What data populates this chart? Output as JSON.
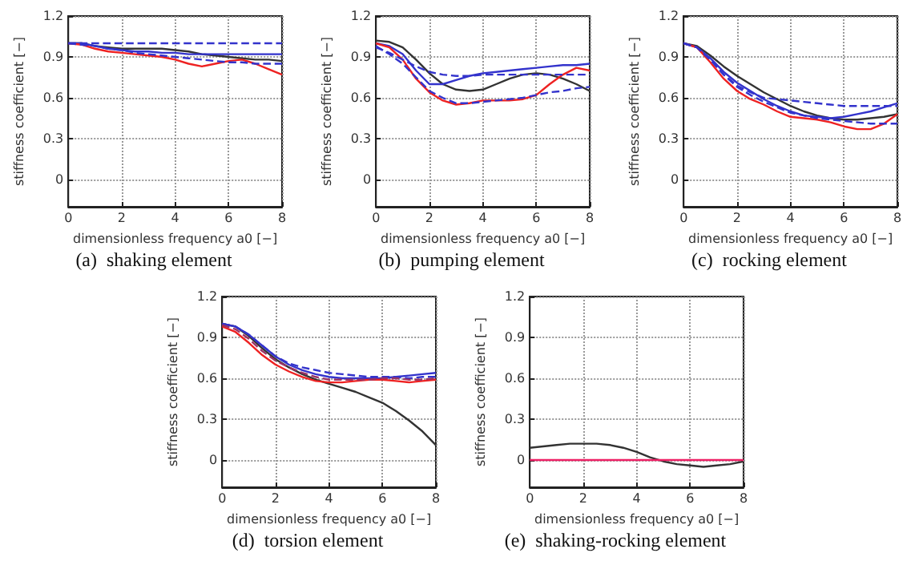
{
  "chart_data": [
    {
      "type": "line",
      "title": "(a)  shaking element",
      "xlabel": "dimensionless frequency a0 [−]",
      "ylabel": "stiffness coefficient [−]",
      "x": [
        0,
        0.5,
        1,
        1.5,
        2,
        2.5,
        3,
        3.5,
        4,
        4.5,
        5,
        5.5,
        6,
        6.5,
        7,
        7.5,
        8
      ],
      "xlim": [
        0,
        8
      ],
      "xticks": [
        0,
        2,
        4,
        6,
        8
      ],
      "ylim": [
        -0.2,
        1.2
      ],
      "yticks": [
        0,
        0.3,
        0.6,
        0.9,
        1.2
      ],
      "grid": true,
      "marker": "none",
      "series": [
        {
          "color": "#333333",
          "line_style": "solid",
          "values": [
            1.0,
            1.0,
            0.98,
            0.97,
            0.96,
            0.96,
            0.96,
            0.96,
            0.95,
            0.94,
            0.92,
            0.91,
            0.9,
            0.89,
            0.88,
            0.88,
            0.87
          ]
        },
        {
          "color": "#3333cc",
          "line_style": "solid",
          "values": [
            1.0,
            1.0,
            0.98,
            0.96,
            0.95,
            0.94,
            0.94,
            0.93,
            0.93,
            0.92,
            0.92,
            0.92,
            0.92,
            0.92,
            0.92,
            0.92,
            0.92
          ]
        },
        {
          "color": "#ee2222",
          "line_style": "solid",
          "values": [
            1.0,
            0.99,
            0.96,
            0.94,
            0.93,
            0.92,
            0.91,
            0.9,
            0.88,
            0.85,
            0.83,
            0.85,
            0.87,
            0.88,
            0.85,
            0.81,
            0.77
          ]
        },
        {
          "color": "#3333cc",
          "line_style": "dashed",
          "values": [
            1.0,
            1.0,
            1.0,
            1.0,
            1.0,
            1.0,
            1.0,
            1.0,
            1.0,
            1.0,
            1.0,
            1.0,
            1.0,
            1.0,
            1.0,
            1.0,
            1.0
          ]
        },
        {
          "color": "#3333cc",
          "line_style": "dashed",
          "values": [
            1.0,
            0.99,
            0.98,
            0.96,
            0.95,
            0.93,
            0.92,
            0.91,
            0.9,
            0.89,
            0.88,
            0.87,
            0.86,
            0.86,
            0.85,
            0.85,
            0.85
          ]
        }
      ]
    },
    {
      "type": "line",
      "title": "(b)  pumping element",
      "xlabel": "dimensionless frequency a0 [−]",
      "ylabel": "stiffness coefficient [−]",
      "x": [
        0,
        0.5,
        1,
        1.5,
        2,
        2.5,
        3,
        3.5,
        4,
        4.5,
        5,
        5.5,
        6,
        6.5,
        7,
        7.5,
        8
      ],
      "xlim": [
        0,
        8
      ],
      "xticks": [
        0,
        2,
        4,
        6,
        8
      ],
      "ylim": [
        -0.2,
        1.2
      ],
      "yticks": [
        0,
        0.3,
        0.6,
        0.9,
        1.2
      ],
      "grid": true,
      "marker": "none",
      "series": [
        {
          "color": "#333333",
          "line_style": "solid",
          "values": [
            1.02,
            1.01,
            0.97,
            0.88,
            0.78,
            0.7,
            0.66,
            0.65,
            0.66,
            0.7,
            0.74,
            0.77,
            0.78,
            0.77,
            0.74,
            0.7,
            0.65
          ]
        },
        {
          "color": "#3333cc",
          "line_style": "solid",
          "values": [
            1.0,
            0.98,
            0.92,
            0.8,
            0.7,
            0.7,
            0.73,
            0.76,
            0.78,
            0.79,
            0.8,
            0.81,
            0.82,
            0.83,
            0.84,
            0.84,
            0.85
          ]
        },
        {
          "color": "#ee2222",
          "line_style": "solid",
          "values": [
            1.0,
            0.97,
            0.88,
            0.74,
            0.64,
            0.58,
            0.55,
            0.56,
            0.58,
            0.58,
            0.58,
            0.59,
            0.62,
            0.7,
            0.77,
            0.82,
            0.8
          ]
        },
        {
          "color": "#3333cc",
          "line_style": "dashed",
          "values": [
            0.97,
            0.93,
            0.88,
            0.83,
            0.79,
            0.77,
            0.76,
            0.76,
            0.77,
            0.77,
            0.77,
            0.77,
            0.77,
            0.77,
            0.77,
            0.77,
            0.77
          ]
        },
        {
          "color": "#3333cc",
          "line_style": "dashed",
          "values": [
            0.98,
            0.92,
            0.85,
            0.75,
            0.65,
            0.6,
            0.56,
            0.56,
            0.57,
            0.58,
            0.59,
            0.6,
            0.62,
            0.64,
            0.65,
            0.67,
            0.68
          ]
        }
      ]
    },
    {
      "type": "line",
      "title": "(c)  rocking element",
      "xlabel": "dimensionless frequency a0 [−]",
      "ylabel": "stiffness coefficient [−]",
      "x": [
        0,
        0.5,
        1,
        1.5,
        2,
        2.5,
        3,
        3.5,
        4,
        4.5,
        5,
        5.5,
        6,
        6.5,
        7,
        7.5,
        8
      ],
      "xlim": [
        0,
        8
      ],
      "xticks": [
        0,
        2,
        4,
        6,
        8
      ],
      "ylim": [
        -0.2,
        1.2
      ],
      "yticks": [
        0,
        0.3,
        0.6,
        0.9,
        1.2
      ],
      "grid": true,
      "marker": "none",
      "series": [
        {
          "color": "#333333",
          "line_style": "solid",
          "values": [
            1.0,
            0.98,
            0.91,
            0.83,
            0.76,
            0.7,
            0.64,
            0.59,
            0.54,
            0.5,
            0.47,
            0.45,
            0.44,
            0.44,
            0.45,
            0.46,
            0.48
          ]
        },
        {
          "color": "#3333cc",
          "line_style": "solid",
          "values": [
            1.0,
            0.97,
            0.89,
            0.79,
            0.71,
            0.65,
            0.59,
            0.54,
            0.5,
            0.47,
            0.46,
            0.45,
            0.46,
            0.48,
            0.5,
            0.53,
            0.56
          ]
        },
        {
          "color": "#ee2222",
          "line_style": "solid",
          "values": [
            1.0,
            0.97,
            0.86,
            0.74,
            0.65,
            0.59,
            0.55,
            0.5,
            0.46,
            0.45,
            0.44,
            0.42,
            0.39,
            0.37,
            0.37,
            0.41,
            0.48
          ]
        },
        {
          "color": "#3333cc",
          "line_style": "dashed",
          "values": [
            1.0,
            0.97,
            0.88,
            0.77,
            0.69,
            0.64,
            0.6,
            0.59,
            0.58,
            0.57,
            0.56,
            0.55,
            0.54,
            0.54,
            0.54,
            0.54,
            0.54
          ]
        },
        {
          "color": "#3333cc",
          "line_style": "dashed",
          "values": [
            1.0,
            0.97,
            0.88,
            0.77,
            0.68,
            0.62,
            0.57,
            0.53,
            0.49,
            0.47,
            0.45,
            0.44,
            0.43,
            0.42,
            0.41,
            0.41,
            0.41
          ]
        }
      ]
    },
    {
      "type": "line",
      "title": "(d)  torsion element",
      "xlabel": "dimensionless frequency a0 [−]",
      "ylabel": "stiffness coefficient [−]",
      "x": [
        0,
        0.5,
        1,
        1.5,
        2,
        2.5,
        3,
        3.5,
        4,
        4.5,
        5,
        5.5,
        6,
        6.5,
        7,
        7.5,
        8
      ],
      "xlim": [
        0,
        8
      ],
      "xticks": [
        0,
        2,
        4,
        6,
        8
      ],
      "ylim": [
        -0.2,
        1.2
      ],
      "yticks": [
        0,
        0.3,
        0.6,
        0.9,
        1.2
      ],
      "grid": true,
      "marker": "none",
      "series": [
        {
          "color": "#333333",
          "line_style": "solid",
          "values": [
            1.0,
            0.98,
            0.91,
            0.82,
            0.74,
            0.68,
            0.63,
            0.59,
            0.56,
            0.53,
            0.5,
            0.46,
            0.42,
            0.36,
            0.29,
            0.21,
            0.11
          ]
        },
        {
          "color": "#3333cc",
          "line_style": "solid",
          "values": [
            1.0,
            0.98,
            0.92,
            0.84,
            0.76,
            0.7,
            0.66,
            0.63,
            0.61,
            0.6,
            0.6,
            0.6,
            0.6,
            0.61,
            0.62,
            0.63,
            0.64
          ]
        },
        {
          "color": "#ee2222",
          "line_style": "solid",
          "values": [
            0.98,
            0.94,
            0.86,
            0.77,
            0.7,
            0.65,
            0.61,
            0.58,
            0.57,
            0.57,
            0.58,
            0.59,
            0.59,
            0.58,
            0.57,
            0.58,
            0.59
          ]
        },
        {
          "color": "#3333cc",
          "line_style": "dashed",
          "values": [
            1.0,
            0.98,
            0.92,
            0.84,
            0.76,
            0.71,
            0.68,
            0.66,
            0.64,
            0.63,
            0.62,
            0.61,
            0.61,
            0.61,
            0.6,
            0.61,
            0.61
          ]
        },
        {
          "color": "#993366",
          "line_style": "dashed",
          "values": [
            0.99,
            0.96,
            0.89,
            0.8,
            0.73,
            0.68,
            0.64,
            0.61,
            0.59,
            0.59,
            0.59,
            0.59,
            0.6,
            0.6,
            0.59,
            0.59,
            0.6
          ]
        }
      ]
    },
    {
      "type": "line",
      "title": "(e)  shaking-rocking element",
      "xlabel": "dimensionless frequency a0 [−]",
      "ylabel": "stiffness coefficient [−]",
      "x": [
        0,
        0.5,
        1,
        1.5,
        2,
        2.5,
        3,
        3.5,
        4,
        4.5,
        5,
        5.5,
        6,
        6.5,
        7,
        7.5,
        8
      ],
      "xlim": [
        0,
        8
      ],
      "xticks": [
        0,
        2,
        4,
        6,
        8
      ],
      "ylim": [
        -0.2,
        1.2
      ],
      "yticks": [
        0,
        0.3,
        0.6,
        0.9,
        1.2
      ],
      "grid": true,
      "marker": "none",
      "series": [
        {
          "color": "#333333",
          "line_style": "solid",
          "values": [
            0.09,
            0.1,
            0.11,
            0.12,
            0.12,
            0.12,
            0.11,
            0.09,
            0.06,
            0.02,
            -0.01,
            -0.03,
            -0.04,
            -0.05,
            -0.04,
            -0.03,
            -0.01
          ]
        },
        {
          "color": "#ee2266",
          "line_style": "solid",
          "values": [
            0,
            0,
            0,
            0,
            0,
            0,
            0,
            0,
            0,
            0,
            0,
            0,
            0,
            0,
            0,
            0,
            0
          ]
        }
      ]
    }
  ]
}
